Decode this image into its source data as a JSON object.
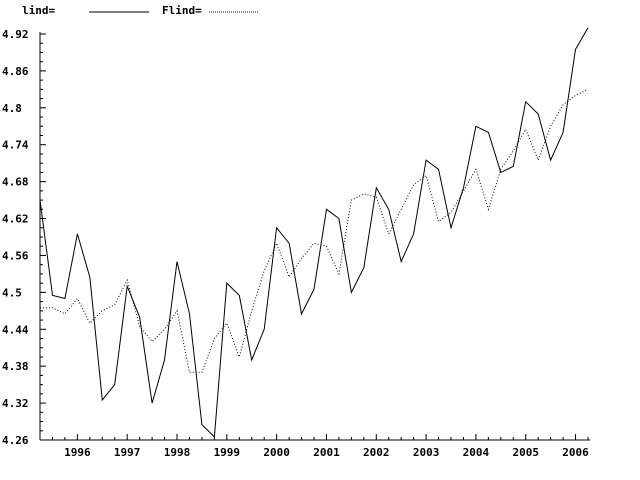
{
  "chart_data": {
    "type": "line",
    "title": "",
    "xlabel": "",
    "ylabel": "",
    "xlim": [
      1995.25,
      2006.25
    ],
    "ylim": [
      4.26,
      4.92
    ],
    "yticks": [
      "4.26",
      "4.32",
      "4.38",
      "4.44",
      "4.5",
      "4.56",
      "4.62",
      "4.68",
      "4.74",
      "4.8",
      "4.86",
      "4.92"
    ],
    "xticks": [
      "1996",
      "1997",
      "1998",
      "1999",
      "2000",
      "2001",
      "2002",
      "2003",
      "2004",
      "2005",
      "2006"
    ],
    "grid": false,
    "legend_position": "top-left",
    "legend": [
      {
        "label": "lind=",
        "style": "solid"
      },
      {
        "label": "Flind=",
        "style": "dotted"
      }
    ],
    "x": [
      1995.25,
      1995.5,
      1995.75,
      1996.0,
      1996.25,
      1996.5,
      1996.75,
      1997.0,
      1997.25,
      1997.5,
      1997.75,
      1998.0,
      1998.25,
      1998.5,
      1998.75,
      1999.0,
      1999.25,
      1999.5,
      1999.75,
      2000.0,
      2000.25,
      2000.5,
      2000.75,
      2001.0,
      2001.25,
      2001.5,
      2001.75,
      2002.0,
      2002.25,
      2002.5,
      2002.75,
      2003.0,
      2003.25,
      2003.5,
      2003.75,
      2004.0,
      2004.25,
      2004.5,
      2004.75,
      2005.0,
      2005.25,
      2005.5,
      2005.75,
      2006.0,
      2006.25
    ],
    "series": [
      {
        "name": "lind",
        "style": "solid",
        "values": [
          4.65,
          4.495,
          4.49,
          4.595,
          4.525,
          4.325,
          4.35,
          4.51,
          4.46,
          4.32,
          4.39,
          4.55,
          4.465,
          4.285,
          4.265,
          4.515,
          4.495,
          4.39,
          4.44,
          4.605,
          4.58,
          4.465,
          4.505,
          4.635,
          4.62,
          4.5,
          4.54,
          4.67,
          4.635,
          4.55,
          4.595,
          4.715,
          4.7,
          4.605,
          4.67,
          4.77,
          4.76,
          4.695,
          4.705,
          4.81,
          4.79,
          4.715,
          4.76,
          4.895,
          4.93
        ]
      },
      {
        "name": "Flind",
        "style": "dotted",
        "values": [
          4.475,
          4.475,
          4.465,
          4.49,
          4.45,
          4.47,
          4.48,
          4.52,
          4.445,
          4.42,
          4.44,
          4.47,
          4.37,
          4.37,
          4.425,
          4.45,
          4.395,
          4.47,
          4.535,
          4.58,
          4.525,
          4.555,
          4.58,
          4.575,
          4.53,
          4.65,
          4.66,
          4.655,
          4.595,
          4.635,
          4.675,
          4.69,
          4.615,
          4.63,
          4.665,
          4.7,
          4.635,
          4.7,
          4.73,
          4.765,
          4.715,
          4.77,
          4.805,
          4.82,
          4.83
        ]
      }
    ]
  }
}
